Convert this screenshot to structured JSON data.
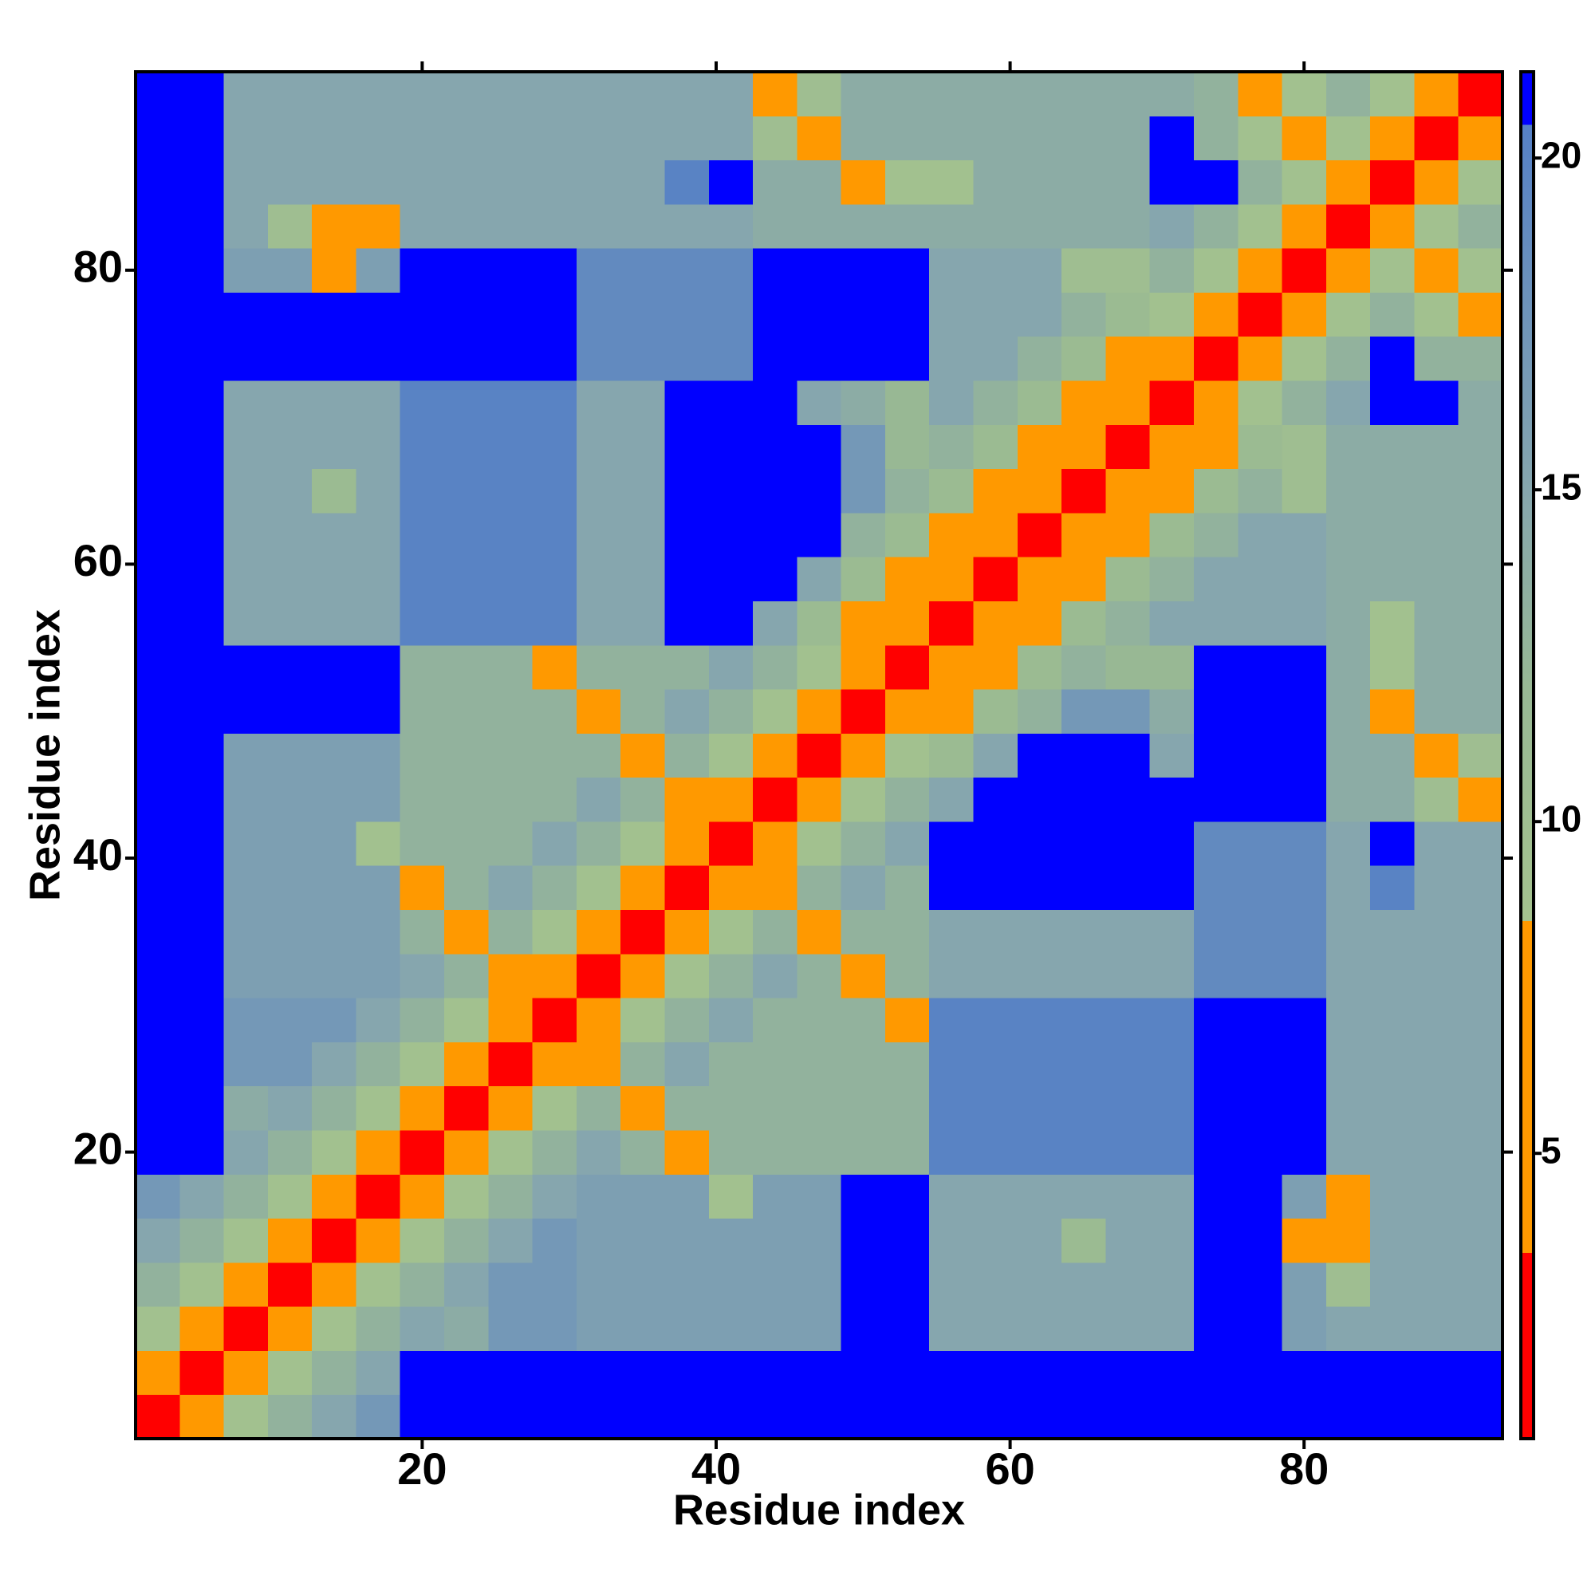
{
  "chart_data": {
    "type": "heatmap",
    "xlabel": "Residue index",
    "ylabel": "Residue index",
    "x_bins": [
      0.5,
      3.5,
      6.5,
      9.5,
      12.5,
      15.5,
      18.5,
      21.5,
      24.5,
      27.5,
      30.5,
      33.5,
      36.5,
      39.5,
      42.5,
      45.5,
      48.5,
      51.5,
      54.5,
      57.5,
      60.5,
      63.5,
      66.5,
      69.5,
      72.5,
      75.5,
      78.5,
      81.5,
      84.5,
      87.5,
      90.5,
      93.5
    ],
    "y_bins": [
      0.5,
      3.5,
      6.5,
      9.5,
      12.5,
      15.5,
      18.5,
      21.5,
      24.5,
      27.5,
      30.5,
      33.5,
      36.5,
      39.5,
      42.5,
      45.5,
      48.5,
      51.5,
      54.5,
      57.5,
      60.5,
      63.5,
      66.5,
      69.5,
      72.5,
      75.5,
      78.5,
      81.5,
      84.5,
      87.5,
      90.5,
      93.5
    ],
    "xlim": [
      0.5,
      93.5
    ],
    "ylim": [
      0.5,
      93.5
    ],
    "xticks": [
      20,
      40,
      60,
      80
    ],
    "yticks": [
      20,
      40,
      60,
      80
    ],
    "colorbar": {
      "lim": [
        0.7,
        21.3
      ],
      "ticks": [
        5,
        10,
        15,
        20
      ]
    },
    "colorscale": [
      [
        0.7,
        "#ff0000"
      ],
      [
        3.5,
        "#ff0000"
      ],
      [
        3.5,
        "#ff9900"
      ],
      [
        8.5,
        "#ff9900"
      ],
      [
        8.5,
        "#a4c28e"
      ],
      [
        12,
        "#98b894"
      ],
      [
        15,
        "#86a6ae"
      ],
      [
        20.5,
        "#5580c6"
      ],
      [
        20.5,
        "#0000ff"
      ],
      [
        21.3,
        "#0000ff"
      ]
    ],
    "values": [
      [
        1,
        5,
        9,
        13,
        15,
        17,
        21,
        21,
        21,
        21,
        21,
        21,
        21,
        21,
        21,
        21,
        21,
        21,
        21,
        21,
        21,
        21,
        21,
        21,
        21,
        21,
        21,
        21,
        21,
        21,
        21
      ],
      [
        5,
        1,
        5,
        9,
        13,
        15,
        21,
        21,
        21,
        21,
        21,
        21,
        21,
        21,
        21,
        21,
        21,
        21,
        21,
        21,
        21,
        21,
        21,
        21,
        21,
        21,
        21,
        21,
        21,
        21,
        21
      ],
      [
        9,
        5,
        1,
        5,
        9,
        13,
        15,
        14,
        17,
        17,
        16,
        16,
        16,
        16,
        16,
        16,
        21,
        21,
        15,
        15,
        15,
        15,
        15,
        15,
        21,
        21,
        16,
        15,
        15,
        15,
        15
      ],
      [
        13,
        9,
        5,
        1,
        5,
        9,
        13,
        15,
        17,
        17,
        16,
        16,
        16,
        16,
        16,
        16,
        21,
        21,
        15,
        15,
        15,
        15,
        15,
        15,
        21,
        21,
        16,
        10,
        15,
        15,
        15
      ],
      [
        15,
        13,
        9,
        5,
        1,
        5,
        9,
        13,
        15,
        17,
        16,
        16,
        16,
        16,
        16,
        16,
        21,
        21,
        15,
        15,
        15,
        11,
        15,
        15,
        21,
        21,
        8,
        6,
        15,
        15,
        15
      ],
      [
        17,
        15,
        13,
        9,
        5,
        1,
        5,
        9,
        13,
        15,
        16,
        16,
        16,
        9,
        16,
        16,
        21,
        21,
        15,
        15,
        15,
        15,
        15,
        15,
        21,
        21,
        16,
        8,
        15,
        15,
        15
      ],
      [
        21,
        21,
        15,
        13,
        9,
        5,
        1,
        5,
        9,
        13,
        15,
        13,
        6,
        13,
        13,
        13,
        13,
        13,
        20,
        20,
        20,
        20,
        20,
        20,
        21,
        21,
        21,
        15,
        15,
        15,
        15
      ],
      [
        21,
        21,
        14,
        15,
        13,
        9,
        5,
        1,
        5,
        9,
        13,
        6,
        13,
        13,
        13,
        13,
        13,
        13,
        20,
        20,
        20,
        20,
        20,
        20,
        21,
        21,
        21,
        15,
        15,
        15,
        15
      ],
      [
        21,
        21,
        17,
        17,
        15,
        13,
        9,
        5,
        1,
        5,
        6,
        13,
        15,
        13,
        13,
        13,
        13,
        13,
        20,
        20,
        20,
        20,
        20,
        20,
        21,
        21,
        21,
        15,
        15,
        15,
        15
      ],
      [
        21,
        21,
        17,
        17,
        17,
        15,
        13,
        9,
        5,
        1,
        5,
        9,
        13,
        15,
        13,
        13,
        13,
        8,
        20,
        20,
        20,
        20,
        20,
        20,
        21,
        21,
        21,
        15,
        15,
        15,
        15
      ],
      [
        21,
        21,
        16,
        16,
        16,
        16,
        15,
        13,
        6,
        5,
        1,
        5,
        9,
        13,
        15,
        13,
        6,
        13,
        15,
        15,
        15,
        15,
        15,
        15,
        19,
        19,
        19,
        15,
        15,
        15,
        15
      ],
      [
        21,
        21,
        16,
        16,
        16,
        16,
        13,
        6,
        13,
        9,
        5,
        1,
        5,
        9,
        13,
        6,
        13,
        13,
        15,
        15,
        15,
        15,
        15,
        15,
        19,
        19,
        19,
        15,
        15,
        15,
        15
      ],
      [
        21,
        21,
        16,
        16,
        16,
        16,
        6,
        13,
        15,
        13,
        9,
        5,
        1,
        5,
        6,
        13,
        15,
        13,
        21,
        21,
        21,
        21,
        21,
        21,
        19,
        19,
        19,
        15,
        20,
        15,
        15
      ],
      [
        21,
        21,
        16,
        16,
        16,
        9,
        13,
        13,
        13,
        15,
        13,
        9,
        5,
        1,
        5,
        9,
        13,
        15,
        21,
        21,
        21,
        21,
        21,
        21,
        19,
        19,
        19,
        15,
        21,
        15,
        15
      ],
      [
        21,
        21,
        16,
        16,
        16,
        16,
        13,
        13,
        13,
        13,
        15,
        13,
        6,
        5,
        1,
        5,
        9,
        13,
        15,
        21,
        21,
        21,
        21,
        21,
        21,
        21,
        21,
        14,
        14,
        10,
        6
      ],
      [
        21,
        21,
        16,
        16,
        16,
        16,
        13,
        13,
        13,
        13,
        13,
        6,
        13,
        9,
        5,
        1,
        5,
        9,
        11,
        15,
        21,
        21,
        21,
        15,
        21,
        21,
        21,
        14,
        14,
        6,
        10
      ],
      [
        21,
        21,
        21,
        21,
        21,
        21,
        13,
        13,
        13,
        13,
        6,
        13,
        15,
        13,
        9,
        5,
        1,
        5,
        7,
        11,
        13,
        17,
        17,
        14,
        21,
        21,
        21,
        14,
        7,
        14,
        14
      ],
      [
        21,
        21,
        21,
        21,
        21,
        21,
        13,
        13,
        13,
        8,
        13,
        13,
        13,
        15,
        13,
        9,
        5,
        1,
        4,
        7,
        11,
        13,
        12,
        12,
        21,
        21,
        21,
        14,
        9,
        14,
        14
      ],
      [
        21,
        21,
        15,
        15,
        15,
        15,
        20,
        20,
        20,
        20,
        15,
        15,
        21,
        21,
        15,
        11,
        7,
        4,
        1,
        4,
        7,
        11,
        13,
        15,
        15,
        15,
        15,
        14,
        9,
        14,
        14
      ],
      [
        21,
        21,
        15,
        15,
        15,
        15,
        20,
        20,
        20,
        20,
        15,
        15,
        21,
        21,
        21,
        15,
        11,
        7,
        4,
        1,
        4,
        7,
        11,
        13,
        15,
        15,
        15,
        14,
        14,
        14,
        14
      ],
      [
        21,
        21,
        15,
        15,
        15,
        15,
        20,
        20,
        20,
        20,
        15,
        15,
        21,
        21,
        21,
        21,
        13,
        11,
        7,
        4,
        1,
        4,
        7,
        11,
        13,
        15,
        15,
        14,
        14,
        14,
        14
      ],
      [
        21,
        21,
        15,
        15,
        11,
        15,
        20,
        20,
        20,
        20,
        15,
        15,
        21,
        21,
        21,
        21,
        17,
        13,
        11,
        7,
        4,
        1,
        4,
        7,
        11,
        13,
        10,
        14,
        14,
        14,
        14
      ],
      [
        21,
        21,
        15,
        15,
        15,
        15,
        20,
        20,
        20,
        20,
        15,
        15,
        21,
        21,
        21,
        21,
        17,
        12,
        13,
        11,
        7,
        4,
        1,
        4,
        7,
        11,
        10,
        14,
        14,
        14,
        14
      ],
      [
        21,
        21,
        15,
        15,
        15,
        15,
        20,
        20,
        20,
        20,
        15,
        15,
        21,
        21,
        21,
        15,
        14,
        12,
        15,
        13,
        11,
        7,
        4,
        1,
        4,
        9,
        13,
        15,
        21,
        21,
        14
      ],
      [
        21,
        21,
        21,
        21,
        21,
        21,
        21,
        21,
        21,
        21,
        19,
        19,
        19,
        19,
        21,
        21,
        21,
        21,
        15,
        15,
        13,
        11,
        7,
        4,
        1,
        5,
        9,
        13,
        21,
        13,
        13
      ],
      [
        21,
        21,
        21,
        21,
        21,
        21,
        21,
        21,
        21,
        21,
        19,
        19,
        19,
        19,
        21,
        21,
        21,
        21,
        15,
        15,
        15,
        13,
        11,
        9,
        5,
        1,
        5,
        9,
        13,
        9,
        6
      ],
      [
        21,
        21,
        16,
        16,
        8,
        16,
        21,
        21,
        21,
        21,
        19,
        19,
        19,
        19,
        21,
        21,
        21,
        21,
        15,
        15,
        15,
        10,
        10,
        13,
        9,
        5,
        1,
        5,
        9,
        6,
        9
      ],
      [
        21,
        21,
        15,
        10,
        6,
        8,
        15,
        15,
        15,
        15,
        15,
        15,
        15,
        15,
        14,
        14,
        14,
        14,
        14,
        14,
        14,
        14,
        14,
        15,
        13,
        9,
        5,
        1,
        5,
        9,
        13
      ],
      [
        21,
        21,
        15,
        15,
        15,
        15,
        15,
        15,
        15,
        15,
        15,
        15,
        20,
        21,
        14,
        14,
        7,
        9,
        9,
        14,
        14,
        14,
        14,
        21,
        21,
        13,
        9,
        5,
        1,
        5,
        9
      ],
      [
        21,
        21,
        15,
        15,
        15,
        15,
        15,
        15,
        15,
        15,
        15,
        15,
        15,
        15,
        10,
        6,
        14,
        14,
        14,
        14,
        14,
        14,
        14,
        21,
        13,
        9,
        6,
        9,
        5,
        1,
        5
      ],
      [
        21,
        21,
        15,
        15,
        15,
        15,
        15,
        15,
        15,
        15,
        15,
        15,
        15,
        15,
        6,
        10,
        14,
        14,
        14,
        14,
        14,
        14,
        14,
        14,
        13,
        6,
        9,
        13,
        9,
        5,
        1
      ]
    ]
  }
}
